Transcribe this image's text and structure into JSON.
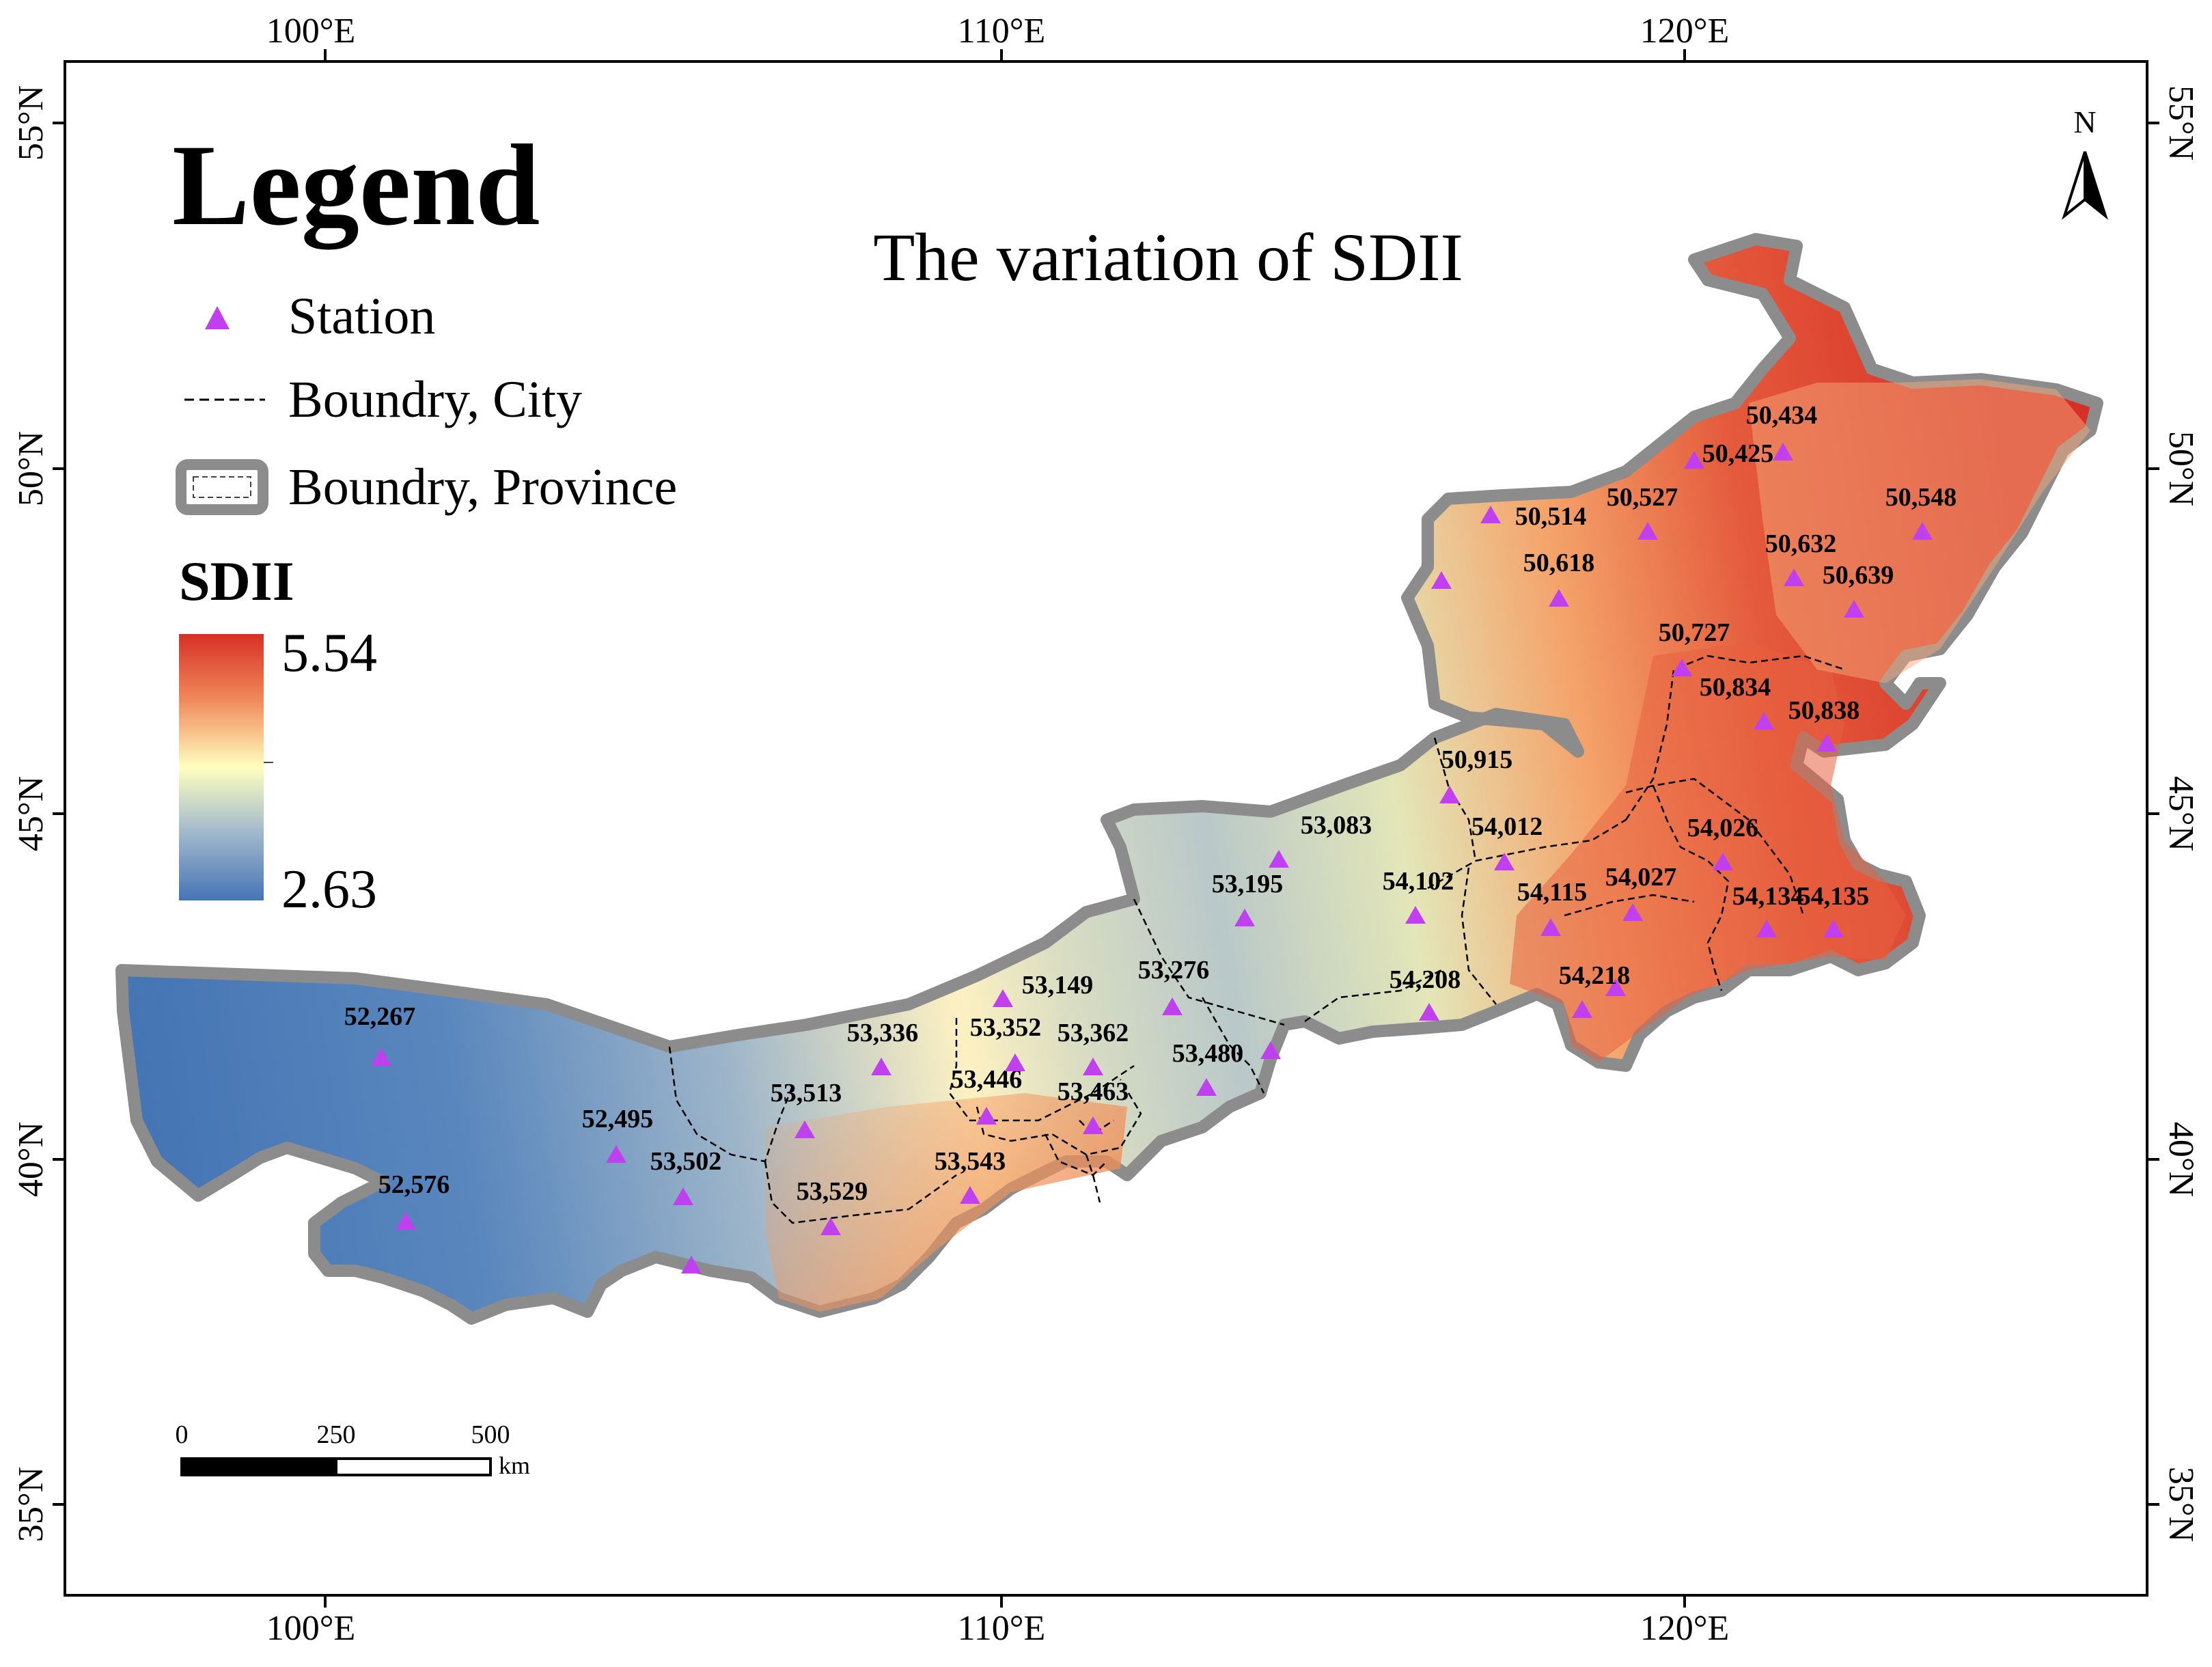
{
  "title": "The variation of SDII",
  "legend": {
    "heading": "Legend",
    "station_label": "Station",
    "city_boundary_label": "Boundry, City",
    "province_boundary_label": "Boundry, Province",
    "colorbar_title": "SDII",
    "colorbar_max": "5.54",
    "colorbar_min": "2.63",
    "colors": {
      "high": "#d73027",
      "mid": "#ffffbf",
      "low": "#4575b4"
    }
  },
  "axes": {
    "lon_ticks": [
      "100°E",
      "110°E",
      "120°E"
    ],
    "lat_ticks": [
      "55°N",
      "50°N",
      "45°N",
      "40°N",
      "35°N"
    ]
  },
  "north_arrow": {
    "label": "N"
  },
  "scale_bar": {
    "ticks": [
      "0",
      "250",
      "500"
    ],
    "unit": "km"
  },
  "stations": [
    {
      "id": "52,267"
    },
    {
      "id": "52,495"
    },
    {
      "id": "52,576"
    },
    {
      "id": "53,502"
    },
    {
      "id": "53,513"
    },
    {
      "id": "53,529"
    },
    {
      "id": "53,336"
    },
    {
      "id": "53,543"
    },
    {
      "id": "53,446"
    },
    {
      "id": "53,352"
    },
    {
      "id": "53,149"
    },
    {
      "id": "53,362"
    },
    {
      "id": "53,463"
    },
    {
      "id": "53,480"
    },
    {
      "id": "53,276"
    },
    {
      "id": "53,195"
    },
    {
      "id": "53,083"
    },
    {
      "id": "54,102"
    },
    {
      "id": "54,208"
    },
    {
      "id": "54,012"
    },
    {
      "id": "50,915"
    },
    {
      "id": "54,115"
    },
    {
      "id": "54,218"
    },
    {
      "id": "54,027"
    },
    {
      "id": "54,026"
    },
    {
      "id": "54,134"
    },
    {
      "id": "54,135"
    },
    {
      "id": "50,838"
    },
    {
      "id": "50,834"
    },
    {
      "id": "50,727"
    },
    {
      "id": "50,639"
    },
    {
      "id": "50,632"
    },
    {
      "id": "50,548"
    },
    {
      "id": "50,434"
    },
    {
      "id": "50,425"
    },
    {
      "id": "50,527"
    },
    {
      "id": "50,514"
    },
    {
      "id": "50,618"
    }
  ]
}
